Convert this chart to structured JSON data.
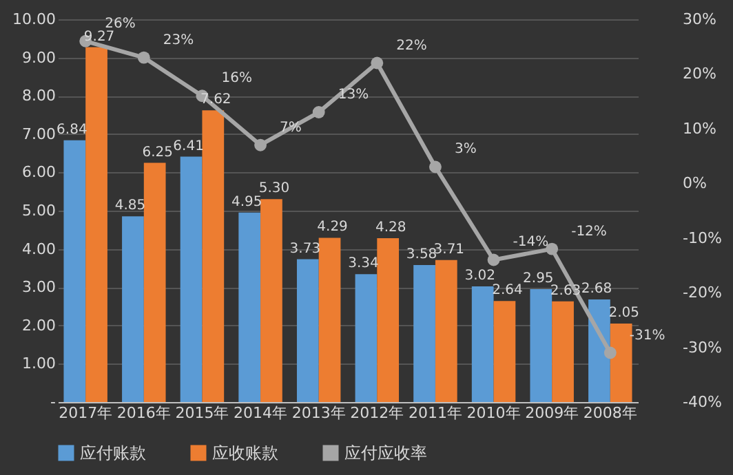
{
  "chart_data": {
    "type": "bar",
    "categories": [
      "2017年",
      "2016年",
      "2015年",
      "2014年",
      "2013年",
      "2012年",
      "2011年",
      "2010年",
      "2009年",
      "2008年"
    ],
    "series": [
      {
        "name": "应付账款",
        "color": "#5b9bd5",
        "values": [
          6.84,
          4.85,
          6.41,
          4.95,
          3.73,
          3.34,
          3.58,
          3.02,
          2.95,
          2.68
        ],
        "value_labels": [
          "6.84",
          "4.85",
          "6.41",
          "4.95",
          "3.73",
          "3.34",
          "3.58",
          "3.02",
          "2.95",
          "2.68"
        ]
      },
      {
        "name": "应收账款",
        "color": "#ed7d31",
        "values": [
          9.27,
          6.25,
          7.62,
          5.3,
          4.29,
          4.28,
          3.71,
          2.64,
          2.63,
          2.05
        ],
        "value_labels": [
          "9.27",
          "6.25",
          "7.62",
          "5.30",
          "4.29",
          "4.28",
          "3.71",
          "2.64",
          "2.63",
          "2.05"
        ]
      },
      {
        "name": "应付应收率",
        "color": "#a6a6a6",
        "type": "line",
        "axis": "y2",
        "marker": "circle",
        "values": [
          26,
          23,
          16,
          7,
          13,
          22,
          3,
          -14,
          -12,
          -31
        ],
        "value_labels": [
          "26%",
          "23%",
          "16%",
          "7%",
          "13%",
          "22%",
          "3%",
          "-14%",
          "-12%",
          "-31%"
        ]
      }
    ],
    "ylim": [
      0,
      10
    ],
    "yticks": [
      {
        "value": 0,
        "label": "-"
      },
      {
        "value": 1,
        "label": "1.00"
      },
      {
        "value": 2,
        "label": "2.00"
      },
      {
        "value": 3,
        "label": "3.00"
      },
      {
        "value": 4,
        "label": "4.00"
      },
      {
        "value": 5,
        "label": "5.00"
      },
      {
        "value": 6,
        "label": "6.00"
      },
      {
        "value": 7,
        "label": "7.00"
      },
      {
        "value": 8,
        "label": "8.00"
      },
      {
        "value": 9,
        "label": "9.00"
      },
      {
        "value": 10,
        "label": "10.00"
      }
    ],
    "y2lim": [
      -40,
      30
    ],
    "y2ticks": [
      {
        "value": -40,
        "label": "-40%"
      },
      {
        "value": -30,
        "label": "-30%"
      },
      {
        "value": -20,
        "label": "-20%"
      },
      {
        "value": -10,
        "label": "-10%"
      },
      {
        "value": 0,
        "label": "0%"
      },
      {
        "value": 10,
        "label": "10%"
      },
      {
        "value": 20,
        "label": "20%"
      },
      {
        "value": 30,
        "label": "30%"
      }
    ],
    "grid": "y",
    "legend": "bottom"
  }
}
